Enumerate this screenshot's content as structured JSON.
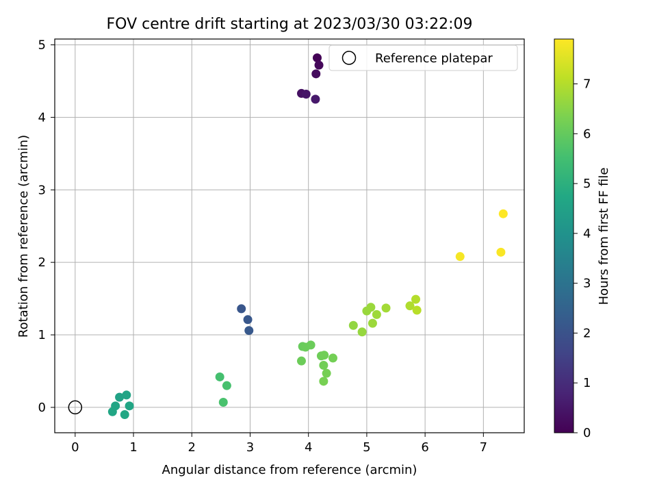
{
  "chart_data": {
    "type": "scatter",
    "title": "FOV centre drift starting at 2023/03/30 03:22:09",
    "xlabel": "Angular distance from reference (arcmin)",
    "ylabel": "Rotation from reference (arcmin)",
    "xlim": [
      -0.35,
      7.7
    ],
    "ylim": [
      -0.35,
      5.08
    ],
    "xticks": [
      0,
      1,
      2,
      3,
      4,
      5,
      6,
      7
    ],
    "yticks": [
      0,
      1,
      2,
      3,
      4,
      5
    ],
    "grid": true,
    "legend": {
      "position": "top-right",
      "entries": [
        "Reference platepar"
      ]
    },
    "reference_point": {
      "x": 0,
      "y": 0
    },
    "colorbar": {
      "label": "Hours from first FF file",
      "range": [
        0,
        7.9
      ],
      "ticks": [
        0,
        1,
        2,
        3,
        4,
        5,
        6,
        7
      ],
      "colormap": "viridis"
    },
    "points": [
      {
        "x": 4.15,
        "y": 4.82,
        "hours": 0.05
      },
      {
        "x": 4.18,
        "y": 4.72,
        "hours": 0.15
      },
      {
        "x": 4.13,
        "y": 4.6,
        "hours": 0.25
      },
      {
        "x": 3.88,
        "y": 4.33,
        "hours": 0.35
      },
      {
        "x": 3.96,
        "y": 4.32,
        "hours": 0.45
      },
      {
        "x": 4.12,
        "y": 4.25,
        "hours": 0.55
      },
      {
        "x": 2.85,
        "y": 1.36,
        "hours": 2.1
      },
      {
        "x": 2.96,
        "y": 1.21,
        "hours": 2.15
      },
      {
        "x": 2.98,
        "y": 1.06,
        "hours": 2.2
      },
      {
        "x": 0.76,
        "y": 0.14,
        "hours": 4.55
      },
      {
        "x": 0.88,
        "y": 0.17,
        "hours": 4.6
      },
      {
        "x": 0.93,
        "y": 0.02,
        "hours": 4.62
      },
      {
        "x": 0.69,
        "y": 0.02,
        "hours": 4.65
      },
      {
        "x": 0.64,
        "y": -0.06,
        "hours": 4.68
      },
      {
        "x": 0.85,
        "y": -0.1,
        "hours": 4.7
      },
      {
        "x": 2.48,
        "y": 0.42,
        "hours": 5.55
      },
      {
        "x": 2.6,
        "y": 0.3,
        "hours": 5.58
      },
      {
        "x": 2.54,
        "y": 0.07,
        "hours": 5.6
      },
      {
        "x": 3.9,
        "y": 0.84,
        "hours": 6.05
      },
      {
        "x": 3.95,
        "y": 0.83,
        "hours": 6.08
      },
      {
        "x": 4.04,
        "y": 0.86,
        "hours": 6.1
      },
      {
        "x": 3.88,
        "y": 0.64,
        "hours": 6.12
      },
      {
        "x": 4.22,
        "y": 0.71,
        "hours": 6.15
      },
      {
        "x": 4.27,
        "y": 0.72,
        "hours": 6.18
      },
      {
        "x": 4.26,
        "y": 0.58,
        "hours": 6.2
      },
      {
        "x": 4.42,
        "y": 0.68,
        "hours": 6.22
      },
      {
        "x": 4.31,
        "y": 0.47,
        "hours": 6.25
      },
      {
        "x": 4.26,
        "y": 0.36,
        "hours": 6.28
      },
      {
        "x": 4.77,
        "y": 1.13,
        "hours": 6.6
      },
      {
        "x": 4.92,
        "y": 1.04,
        "hours": 6.65
      },
      {
        "x": 5.0,
        "y": 1.33,
        "hours": 6.68
      },
      {
        "x": 5.07,
        "y": 1.38,
        "hours": 6.7
      },
      {
        "x": 5.1,
        "y": 1.16,
        "hours": 6.72
      },
      {
        "x": 5.17,
        "y": 1.28,
        "hours": 6.75
      },
      {
        "x": 5.33,
        "y": 1.37,
        "hours": 6.8
      },
      {
        "x": 5.74,
        "y": 1.4,
        "hours": 6.95
      },
      {
        "x": 5.84,
        "y": 1.49,
        "hours": 7.0
      },
      {
        "x": 5.86,
        "y": 1.34,
        "hours": 7.05
      },
      {
        "x": 6.6,
        "y": 2.08,
        "hours": 7.8
      },
      {
        "x": 7.3,
        "y": 2.14,
        "hours": 7.85
      },
      {
        "x": 7.34,
        "y": 2.67,
        "hours": 7.9
      }
    ]
  }
}
